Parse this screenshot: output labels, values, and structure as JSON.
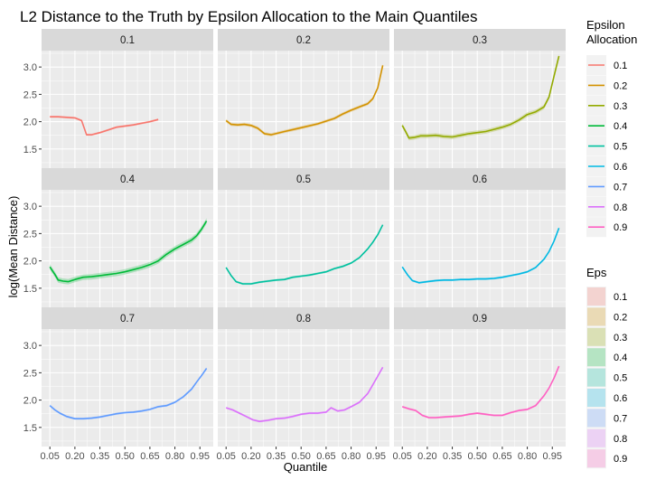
{
  "chart_data": {
    "type": "line",
    "title": "L2 Distance to the Truth by Epsilon Allocation to the Main Quantiles",
    "xlabel": "Quantile",
    "ylabel": "log(Mean Distance)",
    "x_ticks": [
      "0.05",
      "0.20",
      "0.35",
      "0.50",
      "0.65",
      "0.80",
      "0.95"
    ],
    "y_ticks": [
      "1.5",
      "2.0",
      "2.5",
      "3.0"
    ],
    "xlim": [
      0.0,
      1.03
    ],
    "ylim": [
      1.15,
      3.3
    ],
    "grid": true,
    "legend_color_title": "Epsilon Allocation",
    "legend_fill_title": "Eps",
    "legend_position": "right",
    "panels": [
      {
        "label": "0.1",
        "color": "#F8766D",
        "band": 0.02,
        "x": [
          0.05,
          0.1,
          0.15,
          0.2,
          0.24,
          0.27,
          0.3,
          0.35,
          0.4,
          0.45,
          0.5,
          0.55,
          0.6,
          0.65,
          0.7
        ],
        "y": [
          2.09,
          2.09,
          2.08,
          2.07,
          2.02,
          1.76,
          1.76,
          1.8,
          1.85,
          1.9,
          1.92,
          1.94,
          1.97,
          2.0,
          2.04
        ]
      },
      {
        "label": "0.2",
        "color": "#D39200",
        "band": 0.03,
        "x": [
          0.05,
          0.08,
          0.12,
          0.16,
          0.2,
          0.24,
          0.28,
          0.32,
          0.4,
          0.5,
          0.6,
          0.65,
          0.7,
          0.75,
          0.8,
          0.85,
          0.9,
          0.93,
          0.96,
          0.99
        ],
        "y": [
          2.02,
          1.95,
          1.94,
          1.95,
          1.93,
          1.88,
          1.78,
          1.76,
          1.82,
          1.89,
          1.96,
          2.01,
          2.06,
          2.14,
          2.21,
          2.27,
          2.33,
          2.42,
          2.62,
          3.03
        ]
      },
      {
        "label": "0.3",
        "color": "#93AA00",
        "band": 0.04,
        "x": [
          0.05,
          0.07,
          0.09,
          0.12,
          0.16,
          0.2,
          0.25,
          0.3,
          0.35,
          0.4,
          0.45,
          0.5,
          0.55,
          0.6,
          0.65,
          0.7,
          0.75,
          0.8,
          0.85,
          0.9,
          0.93,
          0.96,
          0.99
        ],
        "y": [
          1.93,
          1.82,
          1.7,
          1.71,
          1.74,
          1.74,
          1.75,
          1.73,
          1.72,
          1.75,
          1.78,
          1.8,
          1.82,
          1.86,
          1.9,
          1.95,
          2.03,
          2.13,
          2.18,
          2.27,
          2.45,
          2.83,
          3.2
        ]
      },
      {
        "label": "0.4",
        "color": "#00BA38",
        "band": 0.05,
        "x": [
          0.05,
          0.08,
          0.1,
          0.13,
          0.16,
          0.2,
          0.25,
          0.3,
          0.35,
          0.4,
          0.45,
          0.5,
          0.55,
          0.6,
          0.65,
          0.7,
          0.75,
          0.8,
          0.85,
          0.9,
          0.93,
          0.96,
          0.99
        ],
        "y": [
          1.89,
          1.75,
          1.65,
          1.63,
          1.62,
          1.66,
          1.7,
          1.71,
          1.73,
          1.75,
          1.77,
          1.8,
          1.84,
          1.88,
          1.93,
          2.0,
          2.12,
          2.22,
          2.3,
          2.38,
          2.46,
          2.58,
          2.73
        ]
      },
      {
        "label": "0.5",
        "color": "#00C19F",
        "band": 0.02,
        "x": [
          0.05,
          0.08,
          0.11,
          0.15,
          0.2,
          0.25,
          0.3,
          0.35,
          0.4,
          0.45,
          0.5,
          0.55,
          0.6,
          0.65,
          0.7,
          0.75,
          0.8,
          0.85,
          0.9,
          0.93,
          0.96,
          0.99
        ],
        "y": [
          1.88,
          1.73,
          1.62,
          1.58,
          1.58,
          1.61,
          1.63,
          1.65,
          1.66,
          1.7,
          1.72,
          1.74,
          1.77,
          1.8,
          1.86,
          1.9,
          1.96,
          2.06,
          2.22,
          2.34,
          2.48,
          2.66
        ]
      },
      {
        "label": "0.6",
        "color": "#00B9E3",
        "band": 0.02,
        "x": [
          0.05,
          0.08,
          0.11,
          0.15,
          0.2,
          0.25,
          0.3,
          0.35,
          0.4,
          0.45,
          0.5,
          0.55,
          0.6,
          0.65,
          0.7,
          0.75,
          0.8,
          0.85,
          0.9,
          0.93,
          0.96,
          0.99
        ],
        "y": [
          1.89,
          1.75,
          1.64,
          1.6,
          1.62,
          1.64,
          1.65,
          1.65,
          1.66,
          1.66,
          1.67,
          1.67,
          1.68,
          1.7,
          1.73,
          1.76,
          1.8,
          1.88,
          2.03,
          2.17,
          2.36,
          2.6
        ]
      },
      {
        "label": "0.7",
        "color": "#619CFF",
        "band": 0.02,
        "x": [
          0.05,
          0.08,
          0.11,
          0.15,
          0.2,
          0.25,
          0.3,
          0.35,
          0.4,
          0.45,
          0.5,
          0.55,
          0.6,
          0.65,
          0.7,
          0.75,
          0.8,
          0.85,
          0.9,
          0.93,
          0.96,
          0.99
        ],
        "y": [
          1.9,
          1.82,
          1.76,
          1.7,
          1.66,
          1.66,
          1.67,
          1.69,
          1.72,
          1.75,
          1.77,
          1.78,
          1.8,
          1.83,
          1.88,
          1.9,
          1.96,
          2.06,
          2.2,
          2.33,
          2.45,
          2.58
        ]
      },
      {
        "label": "0.8",
        "color": "#DB72FB",
        "band": 0.02,
        "x": [
          0.05,
          0.09,
          0.13,
          0.17,
          0.21,
          0.25,
          0.3,
          0.35,
          0.4,
          0.45,
          0.5,
          0.55,
          0.6,
          0.65,
          0.68,
          0.72,
          0.76,
          0.8,
          0.85,
          0.9,
          0.93,
          0.96,
          0.99
        ],
        "y": [
          1.86,
          1.82,
          1.76,
          1.7,
          1.64,
          1.61,
          1.63,
          1.66,
          1.67,
          1.7,
          1.74,
          1.76,
          1.76,
          1.78,
          1.86,
          1.8,
          1.82,
          1.88,
          1.96,
          2.12,
          2.28,
          2.44,
          2.6
        ]
      },
      {
        "label": "0.9",
        "color": "#FF61C3",
        "band": 0.02,
        "x": [
          0.05,
          0.09,
          0.13,
          0.17,
          0.21,
          0.25,
          0.3,
          0.35,
          0.4,
          0.45,
          0.5,
          0.55,
          0.6,
          0.65,
          0.7,
          0.75,
          0.8,
          0.85,
          0.9,
          0.93,
          0.96,
          0.99
        ],
        "y": [
          1.88,
          1.84,
          1.81,
          1.72,
          1.68,
          1.68,
          1.69,
          1.7,
          1.71,
          1.74,
          1.76,
          1.74,
          1.72,
          1.72,
          1.77,
          1.81,
          1.83,
          1.9,
          2.08,
          2.22,
          2.4,
          2.62
        ]
      }
    ]
  },
  "legend_labels": [
    "0.1",
    "0.2",
    "0.3",
    "0.4",
    "0.5",
    "0.6",
    "0.7",
    "0.8",
    "0.9"
  ],
  "colors": {
    "panel_background": "#EBEBEB",
    "strip_background": "#D9D9D9",
    "grid_major": "#FFFFFF"
  }
}
